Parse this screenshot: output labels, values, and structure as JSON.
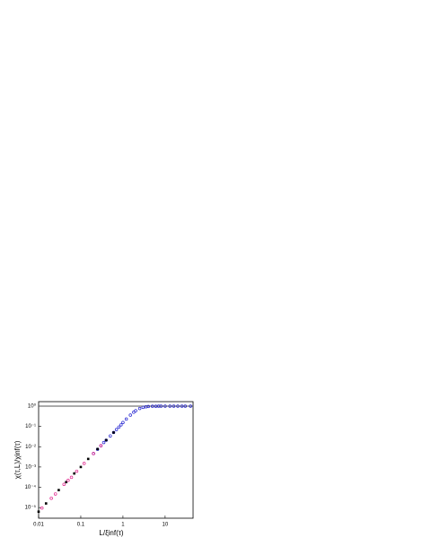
{
  "chart_data": {
    "type": "scatter",
    "x_label": "L/ξinf(τ)",
    "y_label": "χ(τ,L)/χinf(τ)",
    "log_x": true,
    "log_y": true,
    "xlim": [
      0.01,
      46
    ],
    "ylim": [
      3e-06,
      1.66
    ],
    "xticks": [
      0.01,
      0.1,
      1,
      10
    ],
    "yticks": [
      {
        "value": 1,
        "label": "10⁰"
      },
      {
        "value": 0.1,
        "label": "10⁻¹"
      },
      {
        "value": 0.01,
        "label": "10⁻²"
      },
      {
        "value": 0.001,
        "label": "10⁻³"
      },
      {
        "value": 0.0001,
        "label": "10⁻⁴"
      },
      {
        "value": 1e-05,
        "label": "10⁻⁵"
      }
    ],
    "reference_line": {
      "value": 1,
      "color": "#555555"
    },
    "series": [
      {
        "color": "#1f1fd0",
        "marker": "circle",
        "x": [
          0.2,
          0.25,
          0.3,
          0.35,
          0.4,
          0.5,
          0.6,
          0.7,
          0.8,
          0.9,
          1,
          1.2,
          1.5,
          1.8,
          2,
          2.5,
          3,
          3.5,
          4,
          5,
          6,
          7,
          8,
          10,
          13,
          16,
          20,
          25,
          30,
          40
        ],
        "values": [
          0.0046,
          0.0075,
          0.0112,
          0.016,
          0.021,
          0.034,
          0.05,
          0.07,
          0.093,
          0.12,
          0.156,
          0.23,
          0.36,
          0.5,
          0.59,
          0.76,
          0.87,
          0.93,
          0.96,
          0.98,
          0.99,
          1,
          1,
          1,
          1,
          1,
          1,
          1,
          1,
          1
        ]
      },
      {
        "color": "#000000",
        "marker": "square",
        "x": [
          0.01,
          0.015,
          0.03,
          0.045,
          0.07,
          0.1,
          0.15,
          0.25,
          0.4,
          0.6
        ],
        "values": [
          6.3e-06,
          1.6e-05,
          7.3e-05,
          0.00018,
          0.00048,
          0.001,
          0.0025,
          0.0077,
          0.021,
          0.05
        ]
      },
      {
        "color": "#e0208a",
        "marker": "circle",
        "x": [
          0.012,
          0.02,
          0.025,
          0.04,
          0.05,
          0.06,
          0.08,
          0.12,
          0.2,
          0.3
        ],
        "values": [
          9.5e-06,
          2.9e-05,
          4.7e-05,
          0.00014,
          0.00022,
          0.00031,
          0.00062,
          0.0015,
          0.0046,
          0.0112
        ]
      }
    ]
  }
}
